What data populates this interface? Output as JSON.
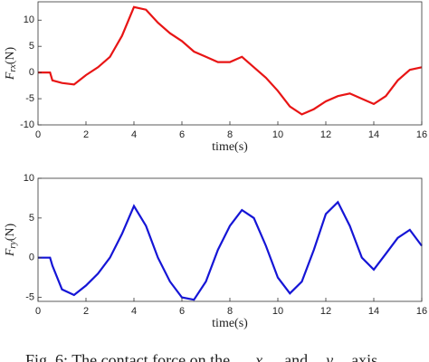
{
  "chart_data": [
    {
      "type": "line",
      "ylabel": "F",
      "ylabel_sub": "rx",
      "ylabel_unit": "(N)",
      "xlabel": "time(s)",
      "x": [
        0,
        0.5,
        0.6,
        1,
        1.5,
        2,
        2.5,
        3,
        3.5,
        4,
        4.5,
        5,
        5.5,
        6,
        6.5,
        7,
        7.5,
        8,
        8.5,
        9,
        9.5,
        10,
        10.5,
        11,
        11.5,
        12,
        12.5,
        13,
        13.5,
        14,
        14.5,
        15,
        15.5,
        16
      ],
      "series": [
        {
          "color": "#e81515",
          "values": [
            0,
            0,
            -1.5,
            -2,
            -2.3,
            -0.5,
            1,
            3,
            7,
            12.5,
            12,
            9.5,
            7.5,
            6,
            4,
            3,
            2,
            2,
            3,
            1,
            -1,
            -3.5,
            -6.5,
            -8,
            -7,
            -5.5,
            -4.5,
            -4,
            -5,
            -6,
            -4.5,
            -1.5,
            0.5,
            1
          ]
        }
      ],
      "xlim": [
        0,
        16
      ],
      "xticks": [
        0,
        2,
        4,
        6,
        8,
        10,
        12,
        14,
        16
      ],
      "ylim": [
        -10,
        13.5
      ],
      "yticks": [
        -10,
        -5,
        0,
        5,
        10
      ]
    },
    {
      "type": "line",
      "ylabel": "F",
      "ylabel_sub": "ry",
      "ylabel_unit": "(N)",
      "xlabel": "time(s)",
      "x": [
        0,
        0.5,
        0.6,
        1,
        1.5,
        2,
        2.5,
        3,
        3.5,
        4,
        4.5,
        5,
        5.5,
        6,
        6.5,
        7,
        7.5,
        8,
        8.5,
        9,
        9.5,
        10,
        10.5,
        11,
        11.5,
        12,
        12.5,
        13,
        13.5,
        14,
        14.5,
        15,
        15.5,
        16
      ],
      "series": [
        {
          "color": "#1515d6",
          "values": [
            0,
            0,
            -1,
            -4,
            -4.7,
            -3.5,
            -2,
            0,
            3,
            6.5,
            4,
            0,
            -3,
            -5,
            -5.3,
            -3,
            1,
            4,
            6,
            5,
            1.5,
            -2.5,
            -4.5,
            -3,
            1,
            5.5,
            7,
            4,
            0,
            -1.5,
            0.5,
            2.5,
            3.5,
            1.5
          ]
        }
      ],
      "xlim": [
        0,
        16
      ],
      "xticks": [
        0,
        2,
        4,
        6,
        8,
        10,
        12,
        14,
        16
      ],
      "ylim": [
        -5.5,
        10
      ],
      "yticks": [
        -5,
        0,
        5,
        10
      ]
    }
  ],
  "caption": [
    "Fig. 6: The contact force on the",
    "x",
    "and",
    "y",
    "axis"
  ]
}
